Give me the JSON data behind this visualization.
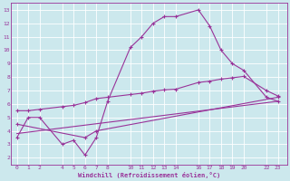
{
  "xlabel": "Windchill (Refroidissement éolien,°C)",
  "bg_color": "#cce8ed",
  "grid_color": "#ffffff",
  "line_color": "#993399",
  "xticks": [
    0,
    1,
    2,
    4,
    5,
    6,
    7,
    8,
    10,
    11,
    12,
    13,
    14,
    16,
    17,
    18,
    19,
    20,
    22,
    23
  ],
  "yticks": [
    2,
    3,
    4,
    5,
    6,
    7,
    8,
    9,
    10,
    11,
    12,
    13
  ],
  "xlim": [
    -0.5,
    23.8
  ],
  "ylim": [
    1.5,
    13.5
  ],
  "line1_x": [
    0,
    1,
    2,
    4,
    5,
    6,
    7,
    8,
    10,
    11,
    12,
    13,
    14,
    16,
    17,
    18,
    19,
    20,
    22,
    23
  ],
  "line1_y": [
    3.5,
    5.0,
    5.0,
    3.0,
    3.3,
    2.2,
    3.5,
    6.2,
    10.2,
    11.0,
    12.0,
    12.5,
    12.5,
    13.0,
    11.8,
    10.0,
    9.0,
    8.5,
    6.5,
    6.2
  ],
  "line2_x": [
    0,
    1,
    2,
    4,
    5,
    6,
    7,
    8,
    10,
    11,
    12,
    13,
    14,
    16,
    17,
    18,
    19,
    20,
    22,
    23
  ],
  "line2_y": [
    5.5,
    5.5,
    5.6,
    5.8,
    5.9,
    6.1,
    6.4,
    6.5,
    6.7,
    6.8,
    6.95,
    7.05,
    7.1,
    7.6,
    7.7,
    7.85,
    7.95,
    8.05,
    7.0,
    6.6
  ],
  "line3_x": [
    0,
    23
  ],
  "line3_y": [
    3.8,
    6.2
  ],
  "line4_x": [
    0,
    6,
    7,
    23
  ],
  "line4_y": [
    4.5,
    3.5,
    4.0,
    6.5
  ]
}
